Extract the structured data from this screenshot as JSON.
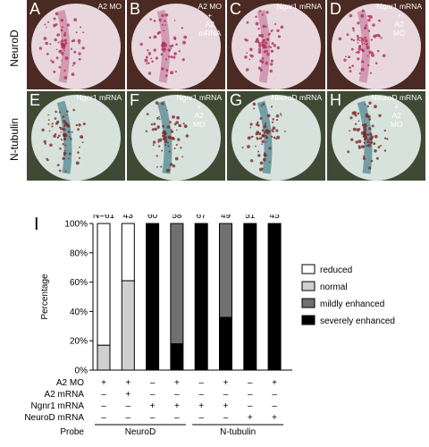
{
  "row_labels": [
    "NeuroD",
    "N-tubulin"
  ],
  "panels": [
    {
      "letter": "A",
      "caption": "A2 MO",
      "theme": "pink"
    },
    {
      "letter": "B",
      "caption": "A2 MO\n+\nA2\nmRNA",
      "theme": "pink"
    },
    {
      "letter": "C",
      "caption": "Ngnr1 mRNA",
      "theme": "pink"
    },
    {
      "letter": "D",
      "caption": "Ngnr1 mRNA\n+\nA2\nMO",
      "theme": "pink"
    },
    {
      "letter": "E",
      "caption": "Ngnr1 mRNA",
      "theme": "teal"
    },
    {
      "letter": "F",
      "caption": "Ngnr1 mRNA\n+\nA2\nMO",
      "theme": "teal"
    },
    {
      "letter": "G",
      "caption": "NeuroD mRNA",
      "theme": "teal"
    },
    {
      "letter": "H",
      "caption": "NeuroD mRNA\n+\nA2\nMO",
      "theme": "teal"
    }
  ],
  "chart_panel_letter": "I",
  "chart_data": {
    "type": "bar",
    "stacked": true,
    "ylabel": "Percentage",
    "ylim": [
      0,
      100
    ],
    "yticks": [
      "0%",
      "20%",
      "40%",
      "60%",
      "80%",
      "100%"
    ],
    "n_prefix": "N=",
    "n_values": [
      "61",
      "43",
      "60",
      "58",
      "67",
      "49",
      "51",
      "45"
    ],
    "series": [
      {
        "name": "reduced",
        "color": "#ffffff",
        "values": [
          83,
          39,
          0,
          0,
          0,
          0,
          0,
          0
        ]
      },
      {
        "name": "normal",
        "color": "#d0d0d0",
        "values": [
          17,
          61,
          0,
          0,
          0,
          0,
          0,
          0
        ]
      },
      {
        "name": "mildly enhanced",
        "color": "#707070",
        "values": [
          0,
          0,
          0,
          82,
          0,
          64,
          0,
          0
        ]
      },
      {
        "name": "severely enhanced",
        "color": "#000000",
        "values": [
          0,
          0,
          100,
          18,
          100,
          36,
          100,
          100
        ]
      }
    ],
    "condition_rows": [
      {
        "label": "A2 MO",
        "marks": [
          "+",
          "+",
          "–",
          "+",
          "–",
          "+",
          "–",
          "+"
        ]
      },
      {
        "label": "A2 mRNA",
        "marks": [
          "–",
          "+",
          "–",
          "–",
          "–",
          "–",
          "–",
          "–"
        ]
      },
      {
        "label": "Ngnr1 mRNA",
        "marks": [
          "–",
          "–",
          "+",
          "+",
          "+",
          "+",
          "–",
          "–"
        ]
      },
      {
        "label": "NeuroD mRNA",
        "marks": [
          "–",
          "–",
          "–",
          "–",
          "–",
          "–",
          "+",
          "+"
        ]
      }
    ],
    "probe_label": "Probe",
    "probe_groups": [
      {
        "name": "NeuroD",
        "bars": [
          0,
          3
        ]
      },
      {
        "name": "N-tubulin",
        "bars": [
          4,
          7
        ]
      }
    ]
  }
}
